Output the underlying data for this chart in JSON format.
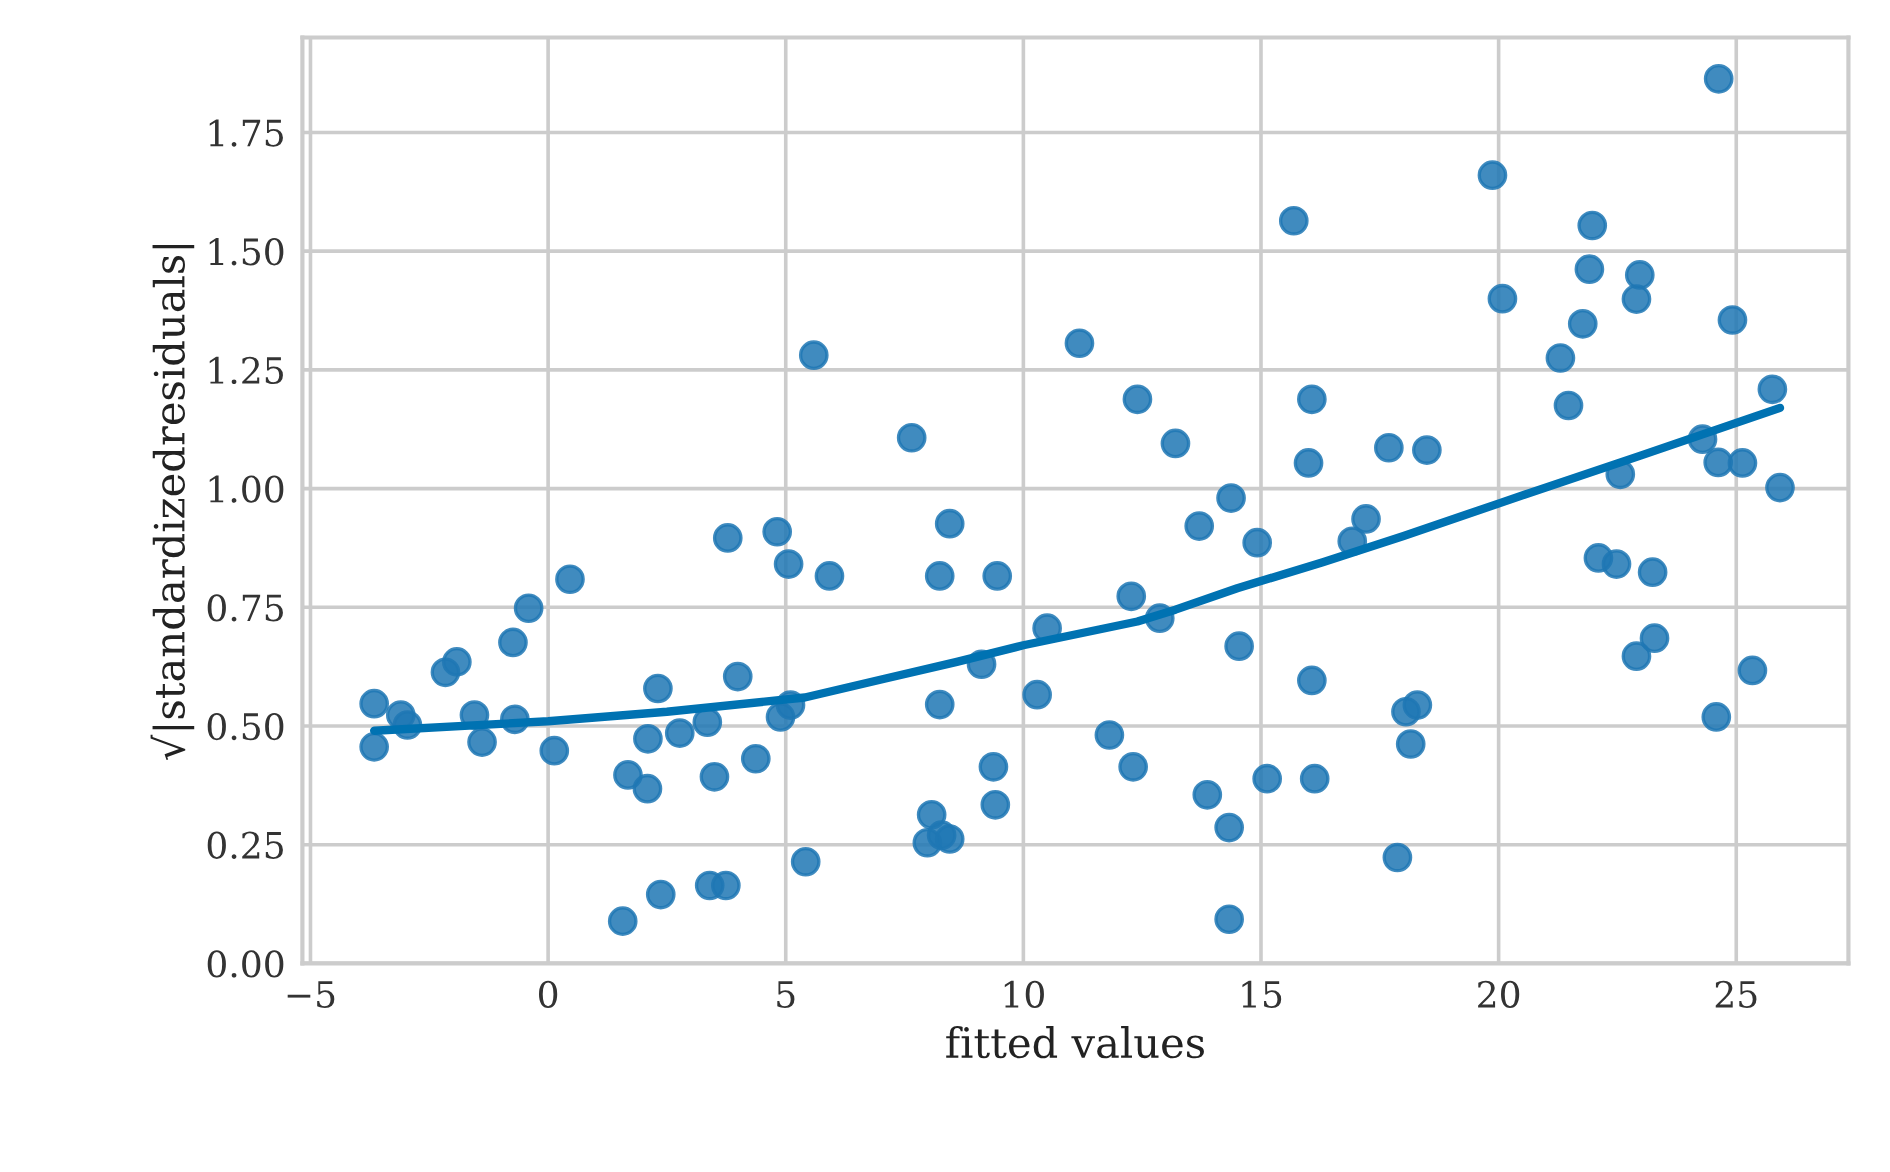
{
  "chart_data": {
    "type": "scatter",
    "xlabel": "fitted values",
    "ylabel": "√|standardizedresiduals|",
    "xlim": [
      -5.17,
      27.36
    ],
    "ylim": [
      0,
      1.95
    ],
    "xticks": [
      {
        "value": -5,
        "label": "−5"
      },
      0,
      5,
      10,
      15,
      20,
      25
    ],
    "yticks": [
      {
        "value": 0,
        "label": "0.00"
      },
      {
        "value": 0.25,
        "label": "0.25"
      },
      {
        "value": 0.5,
        "label": "0.50"
      },
      {
        "value": 0.75,
        "label": "0.75"
      },
      {
        "value": 1.0,
        "label": "1.00"
      },
      {
        "value": 1.25,
        "label": "1.25"
      },
      {
        "value": 1.5,
        "label": "1.50"
      },
      {
        "value": 1.75,
        "label": "1.75"
      }
    ],
    "grid": true,
    "legend": false,
    "series": [
      {
        "marker": "circle",
        "color": "#1f77b4",
        "x": [
          -3.66,
          -3.66,
          -3.1,
          -2.96,
          -2.16,
          -1.92,
          -1.55,
          -1.39,
          -0.74,
          -0.41,
          -0.7,
          0.13,
          0.46,
          1.68,
          2.09,
          1.57,
          2.37,
          2.1,
          2.31,
          2.77,
          3.35,
          3.5,
          3.4,
          3.74,
          3.99,
          4.37,
          3.78,
          4.82,
          5.06,
          4.89,
          5.1,
          5.42,
          5.59,
          5.92,
          7.65,
          8.45,
          8.24,
          9.45,
          9.12,
          8.24,
          10.5,
          10.29,
          9.37,
          9.41,
          8.07,
          7.98,
          8.28,
          8.45,
          11.18,
          12.4,
          13.2,
          14.37,
          13.7,
          14.92,
          12.27,
          12.87,
          14.54,
          11.81,
          12.31,
          13.87,
          14.33,
          15.13,
          14.33,
          15.69,
          16.07,
          16.0,
          16.07,
          16.13,
          19.87,
          20.08,
          24.63,
          21.97,
          21.91,
          22.97,
          22.9,
          21.77,
          21.3,
          24.92,
          21.47,
          25.76,
          24.29,
          24.62,
          25.13,
          25.92,
          22.56,
          17.69,
          18.49,
          17.21,
          16.92,
          22.1,
          22.48,
          23.24,
          23.28,
          22.9,
          25.34,
          24.58,
          18.29,
          18.05,
          18.15,
          17.87
        ],
        "values": [
          0.547,
          0.456,
          0.523,
          0.502,
          0.613,
          0.635,
          0.523,
          0.466,
          0.676,
          0.748,
          0.514,
          0.448,
          0.809,
          0.397,
          0.368,
          0.089,
          0.145,
          0.473,
          0.579,
          0.485,
          0.508,
          0.393,
          0.164,
          0.164,
          0.604,
          0.431,
          0.896,
          0.909,
          0.841,
          0.519,
          0.544,
          0.214,
          1.281,
          0.816,
          1.107,
          0.926,
          0.816,
          0.816,
          0.63,
          0.545,
          0.706,
          0.566,
          0.414,
          0.334,
          0.313,
          0.254,
          0.27,
          0.262,
          1.306,
          1.188,
          1.095,
          0.98,
          0.921,
          0.886,
          0.773,
          0.727,
          0.668,
          0.481,
          0.414,
          0.355,
          0.286,
          0.389,
          0.093,
          1.564,
          1.188,
          1.054,
          0.596,
          0.389,
          1.66,
          1.4,
          1.863,
          1.554,
          1.462,
          1.45,
          1.399,
          1.347,
          1.275,
          1.355,
          1.175,
          1.209,
          1.104,
          1.055,
          1.054,
          1.002,
          1.03,
          1.086,
          1.081,
          0.936,
          0.889,
          0.854,
          0.841,
          0.824,
          0.685,
          0.647,
          0.617,
          0.519,
          0.544,
          0.53,
          0.462,
          0.223
        ]
      },
      {
        "type": "line",
        "color": "#0072b2",
        "x": [
          -3.66,
          0,
          2.5,
          5.4,
          7.1,
          8.6,
          10,
          12.4,
          13.2,
          14.5,
          16.3,
          18,
          20.04,
          23,
          25.92
        ],
        "values": [
          0.49,
          0.51,
          0.53,
          0.56,
          0.6,
          0.635,
          0.67,
          0.72,
          0.745,
          0.79,
          0.845,
          0.9,
          0.97,
          1.07,
          1.17
        ]
      }
    ]
  }
}
